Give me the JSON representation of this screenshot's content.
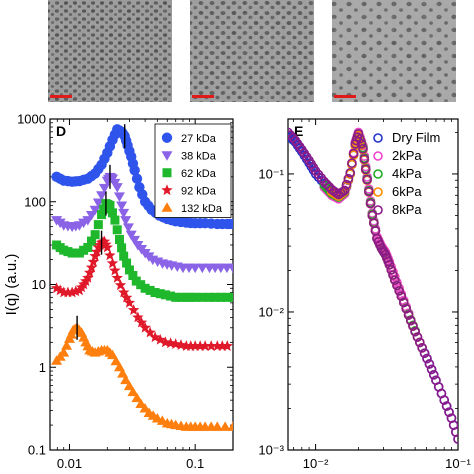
{
  "images": [
    {
      "name": "tem-image-1",
      "scale_bar_color": "#e01919"
    },
    {
      "name": "tem-image-2",
      "scale_bar_color": "#e01919"
    },
    {
      "name": "tem-image-3",
      "scale_bar_color": "#e01919"
    }
  ],
  "chart_data": [
    {
      "type": "scatter",
      "panel_label": "D",
      "ylabel": "I(q) (a.u.)",
      "xlabel": "",
      "xscale": "log",
      "yscale": "log",
      "xlim": [
        0.007,
        0.2
      ],
      "ylim": [
        0.1,
        1000
      ],
      "x_ticks": [
        {
          "v": 0.01,
          "label": "0.01"
        },
        {
          "v": 0.1,
          "label": "0.1"
        }
      ],
      "y_ticks": [
        {
          "v": 0.1,
          "label": "0.1"
        },
        {
          "v": 1,
          "label": "1"
        },
        {
          "v": 10,
          "label": "10"
        },
        {
          "v": 100,
          "label": "100"
        },
        {
          "v": 1000,
          "label": "1000"
        }
      ],
      "legend_position": "top-right",
      "series": [
        {
          "name": "27 kDa",
          "marker": "circle",
          "color": "#2f54eb",
          "x": [
            0.0079,
            0.009,
            0.0105,
            0.012,
            0.014,
            0.016,
            0.018,
            0.02,
            0.022,
            0.024,
            0.026,
            0.0275,
            0.029,
            0.031,
            0.033,
            0.036,
            0.04,
            0.045,
            0.052,
            0.06,
            0.07,
            0.085,
            0.1,
            0.12,
            0.15,
            0.18,
            0.2
          ],
          "y": [
            200,
            180,
            175,
            178,
            190,
            220,
            280,
            390,
            560,
            750,
            700,
            620,
            480,
            350,
            240,
            150,
            100,
            80,
            68,
            62,
            58,
            56,
            55,
            55,
            54,
            54,
            54
          ],
          "peak_tick_x": 0.0275
        },
        {
          "name": "38 kDa",
          "marker": "triangle-down",
          "color": "#8a63e6",
          "x": [
            0.0079,
            0.009,
            0.0105,
            0.012,
            0.014,
            0.016,
            0.018,
            0.02,
            0.021,
            0.022,
            0.024,
            0.026,
            0.028,
            0.031,
            0.035,
            0.04,
            0.046,
            0.055,
            0.065,
            0.08,
            0.1,
            0.13,
            0.16,
            0.2
          ],
          "y": [
            60,
            52,
            50,
            52,
            60,
            80,
            120,
            180,
            200,
            190,
            150,
            90,
            60,
            40,
            30,
            24,
            20,
            18,
            17,
            16,
            16,
            16,
            16,
            16
          ],
          "peak_tick_x": 0.021
        },
        {
          "name": "62 kDa",
          "marker": "square",
          "color": "#1fb82c",
          "x": [
            0.0079,
            0.009,
            0.0105,
            0.012,
            0.014,
            0.016,
            0.018,
            0.0195,
            0.021,
            0.023,
            0.025,
            0.027,
            0.03,
            0.034,
            0.04,
            0.048,
            0.058,
            0.07,
            0.085,
            0.1,
            0.13,
            0.16,
            0.2
          ],
          "y": [
            30,
            26,
            24,
            24,
            28,
            40,
            70,
            95,
            90,
            60,
            35,
            22,
            15,
            11,
            9,
            8,
            7.5,
            7,
            7,
            7,
            7,
            7,
            7
          ],
          "peak_tick_x": 0.0195
        },
        {
          "name": "92 kDa",
          "marker": "star",
          "color": "#e0192a",
          "x": [
            0.0079,
            0.009,
            0.0105,
            0.012,
            0.013,
            0.014,
            0.015,
            0.016,
            0.017,
            0.018,
            0.019,
            0.02,
            0.022,
            0.024,
            0.027,
            0.03,
            0.035,
            0.04,
            0.048,
            0.058,
            0.07,
            0.085,
            0.1,
            0.12,
            0.15,
            0.18
          ],
          "y": [
            9,
            8,
            8,
            8.5,
            10,
            12,
            16,
            22,
            28,
            32,
            33,
            28,
            18,
            12,
            8,
            6,
            4,
            3,
            2.3,
            2,
            1.9,
            1.8,
            1.8,
            1.8,
            1.8,
            1.8
          ],
          "peak_tick_x": 0.018
        },
        {
          "name": "132 kDa",
          "marker": "triangle-up",
          "color": "#ff7f0e",
          "x": [
            0.0079,
            0.009,
            0.01,
            0.0107,
            0.0115,
            0.0125,
            0.0135,
            0.0145,
            0.016,
            0.018,
            0.02,
            0.022,
            0.025,
            0.028,
            0.032,
            0.037,
            0.043,
            0.05,
            0.06,
            0.07,
            0.085,
            0.1,
            0.12,
            0.15,
            0.2
          ],
          "y": [
            1.2,
            1.5,
            2.2,
            2.8,
            3,
            2.6,
            2,
            1.6,
            1.5,
            1.6,
            1.6,
            1.4,
            1,
            0.7,
            0.5,
            0.36,
            0.28,
            0.24,
            0.21,
            0.2,
            0.19,
            0.19,
            0.19,
            0.19,
            0.19
          ],
          "peak_tick_x": 0.0115
        }
      ]
    },
    {
      "type": "scatter",
      "panel_label": "E",
      "ylabel": "",
      "xlabel": "",
      "xscale": "log",
      "yscale": "log",
      "xlim": [
        0.0064,
        0.1
      ],
      "ylim": [
        0.001,
        0.25
      ],
      "x_ticks": [
        {
          "v": 0.01,
          "label": "10⁻²"
        },
        {
          "v": 0.1,
          "label": "10⁻¹"
        }
      ],
      "y_ticks": [
        {
          "v": 0.001,
          "label": "10⁻³"
        },
        {
          "v": 0.01,
          "label": "10⁻²"
        },
        {
          "v": 0.1,
          "label": "10⁻¹"
        }
      ],
      "legend_position": "top-right",
      "series": [
        {
          "name": "Dry Film",
          "marker": "open-circle",
          "color": "#2233cc",
          "x": [
            0.0064,
            0.0072,
            0.008,
            0.009,
            0.01,
            0.0115,
            0.013,
            0.0145,
            0.016,
            0.0175,
            0.019,
            0.02,
            0.0215,
            0.023,
            0.025,
            0.027,
            0.029,
            0.031,
            0.033,
            0.036,
            0.04,
            0.045,
            0.05,
            0.056,
            0.063,
            0.07,
            0.08,
            0.09,
            0.1
          ],
          "y": [
            0.19,
            0.17,
            0.145,
            0.12,
            0.1,
            0.085,
            0.075,
            0.07,
            0.075,
            0.1,
            0.16,
            0.19,
            0.15,
            0.09,
            0.05,
            0.034,
            0.029,
            0.026,
            0.022,
            0.017,
            0.013,
            0.0095,
            0.0072,
            0.0055,
            0.0042,
            0.0032,
            0.0023,
            0.0017,
            0.0012
          ]
        },
        {
          "name": "2kPa",
          "marker": "open-circle",
          "color": "#ee44cc",
          "x": [
            0.0115,
            0.013,
            0.0145,
            0.016,
            0.0175,
            0.019,
            0.02,
            0.0215,
            0.023,
            0.025,
            0.027,
            0.029,
            0.031,
            0.033,
            0.036,
            0.04,
            0.045
          ],
          "y": [
            0.08,
            0.07,
            0.066,
            0.072,
            0.1,
            0.17,
            0.2,
            0.16,
            0.095,
            0.052,
            0.035,
            0.03,
            0.027,
            0.023,
            0.018,
            0.0135,
            0.0098
          ]
        },
        {
          "name": "4kPa",
          "marker": "open-circle",
          "color": "#22aa22",
          "x": [
            0.0115,
            0.013,
            0.0145,
            0.016,
            0.0175,
            0.019,
            0.02,
            0.0215,
            0.023,
            0.025,
            0.027,
            0.029,
            0.031,
            0.033,
            0.036,
            0.04,
            0.045,
            0.05
          ],
          "y": [
            0.083,
            0.072,
            0.068,
            0.074,
            0.1,
            0.165,
            0.195,
            0.155,
            0.092,
            0.051,
            0.034,
            0.029,
            0.026,
            0.022,
            0.017,
            0.013,
            0.0096,
            0.0073
          ]
        },
        {
          "name": "6kPa",
          "marker": "open-circle",
          "color": "#ff8c00",
          "x": [
            0.013,
            0.0145,
            0.016,
            0.0175,
            0.019,
            0.02,
            0.0215,
            0.023,
            0.025,
            0.027,
            0.029,
            0.031,
            0.033,
            0.036,
            0.04,
            0.045,
            0.05,
            0.056
          ],
          "y": [
            0.074,
            0.069,
            0.075,
            0.1,
            0.16,
            0.19,
            0.15,
            0.09,
            0.05,
            0.034,
            0.029,
            0.026,
            0.022,
            0.017,
            0.013,
            0.0095,
            0.0072,
            0.0055
          ]
        },
        {
          "name": "8kPa",
          "marker": "open-circle",
          "color": "#8a1a8a",
          "x": [
            0.0064,
            0.0072,
            0.008,
            0.009,
            0.01,
            0.0115,
            0.013,
            0.0145,
            0.016,
            0.0175,
            0.019,
            0.02,
            0.0215,
            0.023,
            0.025,
            0.027,
            0.029,
            0.031,
            0.033,
            0.036,
            0.04,
            0.045,
            0.05,
            0.056,
            0.063,
            0.07,
            0.08,
            0.09,
            0.1
          ],
          "y": [
            0.2,
            0.175,
            0.15,
            0.125,
            0.105,
            0.088,
            0.077,
            0.071,
            0.076,
            0.102,
            0.165,
            0.195,
            0.152,
            0.091,
            0.05,
            0.034,
            0.029,
            0.026,
            0.022,
            0.017,
            0.013,
            0.0095,
            0.0072,
            0.0055,
            0.0042,
            0.0032,
            0.0023,
            0.0017,
            0.0012
          ]
        }
      ]
    }
  ]
}
